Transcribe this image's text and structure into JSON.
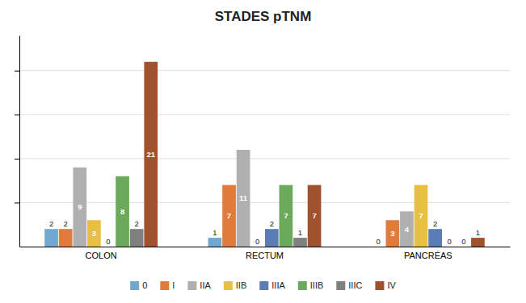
{
  "chart_data": {
    "type": "bar",
    "title": "STADES pTNM",
    "categories": [
      "COLON",
      "RECTUM",
      "PANCRÉAS"
    ],
    "series": [
      {
        "name": "0",
        "color": "#6fa8d0",
        "values": [
          2,
          1,
          0
        ]
      },
      {
        "name": "I",
        "color": "#e07b3a",
        "values": [
          2,
          7,
          3
        ]
      },
      {
        "name": "IIA",
        "color": "#b0b0b0",
        "values": [
          9,
          11,
          4
        ]
      },
      {
        "name": "IIB",
        "color": "#e8c040",
        "values": [
          3,
          0,
          7
        ]
      },
      {
        "name": "IIIA",
        "color": "#5a7db5",
        "values": [
          0,
          2,
          2
        ]
      },
      {
        "name": "IIIB",
        "color": "#6aaa5a",
        "values": [
          8,
          7,
          0
        ]
      },
      {
        "name": "IIIC",
        "color": "#808080",
        "values": [
          2,
          1,
          0
        ]
      },
      {
        "name": "IV",
        "color": "#a0522d",
        "values": [
          21,
          7,
          1
        ]
      }
    ],
    "ylim": [
      0,
      24
    ],
    "yticks": [
      5,
      10,
      15,
      20
    ],
    "grid": true,
    "legend": "bottom",
    "data_labels": true,
    "tick_labels": "x"
  }
}
